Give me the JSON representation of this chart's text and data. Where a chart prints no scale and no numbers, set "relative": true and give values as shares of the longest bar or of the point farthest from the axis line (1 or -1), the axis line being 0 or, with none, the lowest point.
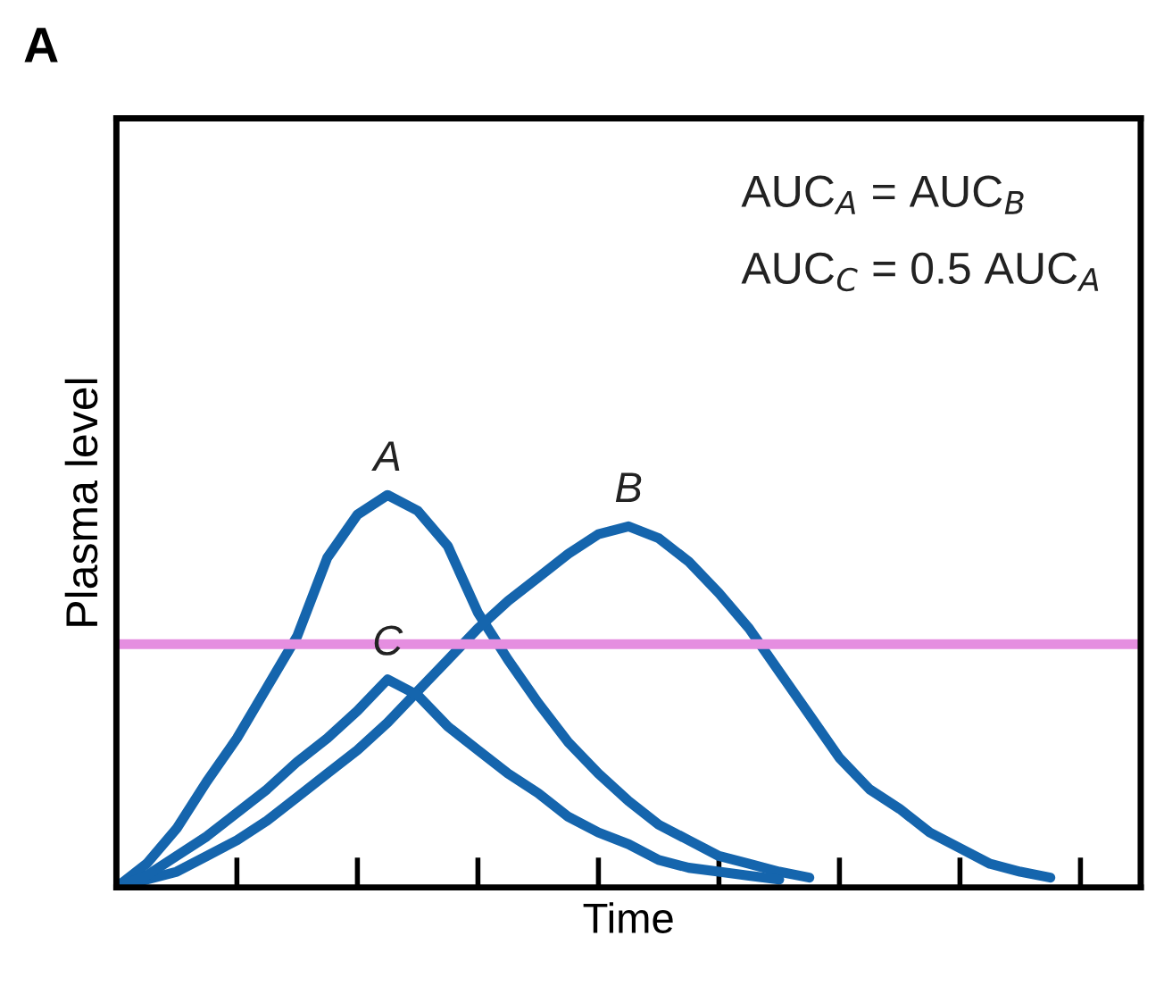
{
  "chart_data": {
    "type": "line",
    "title": "A",
    "xlabel": "Time",
    "ylabel": "Plasma level",
    "relative": true,
    "tick_labels": false,
    "grid": false,
    "legend": false,
    "marker": "none",
    "line_style": "solid",
    "categories": [
      null,
      null,
      null,
      null,
      null,
      null,
      null,
      null,
      null,
      null,
      null,
      null,
      null,
      null,
      null,
      null,
      null,
      null,
      null,
      null,
      null,
      null,
      null,
      null,
      null,
      null,
      null,
      null,
      null,
      null,
      null,
      null,
      null,
      null,
      null
    ],
    "series": [
      {
        "name": "A",
        "color": "#1565ad",
        "values": [
          0,
          0.06,
          0.15,
          0.27,
          0.38,
          0.51,
          0.64,
          0.84,
          0.95,
          1.0,
          0.96,
          0.87,
          0.7,
          0.58,
          0.47,
          0.37,
          0.29,
          0.22,
          0.16,
          0.12,
          0.08,
          0.06,
          0.04,
          0.025,
          null,
          null,
          null,
          null,
          null,
          null,
          null,
          null,
          null,
          null,
          null
        ]
      },
      {
        "name": "B",
        "color": "#1565ad",
        "values": [
          0,
          0.02,
          0.04,
          0.08,
          0.12,
          0.17,
          0.23,
          0.29,
          0.35,
          0.42,
          0.5,
          0.58,
          0.66,
          0.73,
          0.79,
          0.85,
          0.9,
          0.92,
          0.89,
          0.83,
          0.75,
          0.66,
          0.55,
          0.44,
          0.33,
          0.25,
          0.2,
          0.14,
          0.1,
          0.06,
          0.04,
          0.025,
          null,
          null,
          null
        ]
      },
      {
        "name": "C",
        "color": "#1565ad",
        "values": [
          0,
          0.03,
          0.08,
          0.13,
          0.19,
          0.25,
          0.32,
          0.38,
          0.45,
          0.53,
          0.49,
          0.41,
          0.35,
          0.29,
          0.24,
          0.18,
          0.14,
          0.11,
          0.07,
          0.05,
          0.04,
          0.03,
          0.02,
          null,
          null,
          null,
          null,
          null,
          null,
          null,
          null,
          null,
          null,
          null,
          null
        ]
      }
    ],
    "ref_lines": [
      {
        "axis": "y",
        "value": 0.62,
        "color": "#e58ee0",
        "line_style": "solid"
      }
    ],
    "annotations": [
      "AUC$_{A}$ = AUC$_{B}$",
      "AUC$_{C}$ = 0.5 AUC$_{A}$"
    ]
  }
}
